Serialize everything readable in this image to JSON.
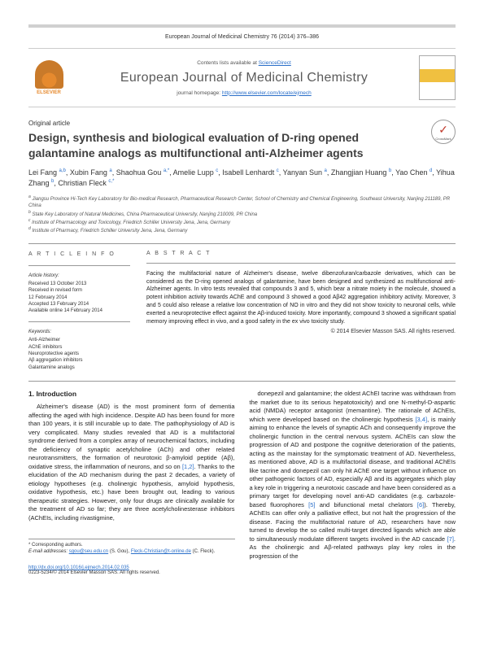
{
  "header": {
    "citation": "European Journal of Medicinal Chemistry 76 (2014) 376–386"
  },
  "masthead": {
    "publisher": "ELSEVIER",
    "contents": "Contents lists available at ",
    "contents_link": "ScienceDirect",
    "journal": "European Journal of Medicinal Chemistry",
    "homepage_label": "journal homepage: ",
    "homepage_url": "http://www.elsevier.com/locate/ejmech"
  },
  "article": {
    "type": "Original article",
    "title": "Design, synthesis and biological evaluation of D-ring opened galantamine analogs as multifunctional anti-Alzheimer agents",
    "crossmark": "CrossMark",
    "authors_html": "Lei Fang",
    "authors": [
      {
        "name": "Lei Fang",
        "aff": "a,b"
      },
      {
        "name": "Xubin Fang",
        "aff": "a"
      },
      {
        "name": "Shaohua Gou",
        "aff": "a,*"
      },
      {
        "name": "Amelie Lupp",
        "aff": "c"
      },
      {
        "name": "Isabell Lenhardt",
        "aff": "c"
      },
      {
        "name": "Yanyan Sun",
        "aff": "a"
      },
      {
        "name": "Zhangjian Huang",
        "aff": "b"
      },
      {
        "name": "Yao Chen",
        "aff": "d"
      },
      {
        "name": "Yihua Zhang",
        "aff": "b"
      },
      {
        "name": "Christian Fleck",
        "aff": "c,*"
      }
    ],
    "affiliations": [
      "Jiangsu Province Hi-Tech Key Laboratory for Bio-medical Research, Pharmaceutical Research Center, School of Chemistry and Chemical Engineering, Southeast University, Nanjing 211189, PR China",
      "State Key Laboratory of Natural Medicines, China Pharmaceutical University, Nanjing 210009, PR China",
      "Institute of Pharmacology and Toxicology, Friedrich Schiller University Jena, Jena, Germany",
      "Institute of Pharmacy, Friedrich Schiller University Jena, Jena, Germany"
    ]
  },
  "meta": {
    "info_head": "A R T I C L E   I N F O",
    "abs_head": "A B S T R A C T",
    "history_label": "Article history:",
    "history": [
      "Received 13 October 2013",
      "Received in revised form",
      "12 February 2014",
      "Accepted 13 February 2014",
      "Available online 14 February 2014"
    ],
    "kw_label": "Keywords:",
    "keywords": [
      "Anti-Alzheimer",
      "AChE inhibitors",
      "Neuroprotective agents",
      "Aβ aggregation inhibitors",
      "Galantamine analogs"
    ],
    "abstract": "Facing the multifactorial nature of Alzheimer's disease, twelve dibenzofuran/carbazole derivatives, which can be considered as the D-ring opened analogs of galantamine, have been designed and synthesized as multifunctional anti-Alzheimer agents. In vitro tests revealed that compounds 3 and 5, which bear a nitrate moiety in the molecule, showed a potent inhibition activity towards AChE and compound 3 showed a good Aβ42 aggregation inhibitory activity. Moreover, 3 and 5 could also release a relative low concentration of NO in vitro and they did not show toxicity to neuronal cells, while exerted a neuroprotective effect against the Aβ-induced toxicity. More importantly, compound 3 showed a significant spatial memory improving effect in vivo, and a good safety in the ex vivo toxicity study.",
    "copyright": "© 2014 Elsevier Masson SAS. All rights reserved."
  },
  "body": {
    "intro_head": "1.  Introduction",
    "col1": "Alzheimer's disease (AD) is the most prominent form of dementia affecting the aged with high incidence. Despite AD has been found for more than 100 years, it is still incurable up to date. The pathophysiology of AD is very complicated. Many studies revealed that AD is a multifactorial syndrome derived from a complex array of neurochemical factors, including the deficiency of synaptic acetylcholine (ACh) and other related neurotransmitters, the formation of neurotoxic β-amyloid peptide (Aβ), oxidative stress, the inflammation of neurons, and so on [1,2]. Thanks to the elucidation of the AD mechanism during the past 2 decades, a variety of etiology hypotheses (e.g. cholinergic hypothesis, amyloid hypothesis, oxidative hypothesis, etc.) have been brought out, leading to various therapeutic strategies. However, only four drugs are clinically available for the treatment of AD so far; they are three acetylcholinesterase inhibitors (AChEIs, including rivastigmine,",
    "col2": "donepezil and galantamine; the oldest AChEI tacrine was withdrawn from the market due to its serious hepatotoxicity) and one N-methyl-D-aspartic acid (NMDA) receptor antagonist (memantine). The rationale of AChEIs, which were developed based on the cholinergic hypothesis [3,4], is mainly aiming to enhance the levels of synaptic ACh and consequently improve the cholinergic function in the central nervous system. AChEIs can slow the progression of AD and postpone the cognitive deterioration of the patients, acting as the mainstay for the symptomatic treatment of AD. Nevertheless, as mentioned above, AD is a multifactorial disease, and traditional AChEIs like tacrine and donepezil can only hit AChE one target without influence on other pathogenic factors of AD, especially Aβ and its aggregates which play a key role in triggering a neurotoxic cascade and have been considered as a primary target for developing novel anti-AD candidates (e.g. carbazole-based fluorophores [5] and bifunctional metal chelators [6]). Thereby, AChEIs can offer only a palliative effect, but not halt the progression of the disease. Facing the multifactorial nature of AD, researchers have now turned to develop the so called multi-target directed ligands which are able to simultaneously modulate different targets involved in the AD cascade [7]. As the cholinergic and Aβ-related pathways play key roles in the progression of the"
  },
  "footer": {
    "corr_label": "* Corresponding authors.",
    "email_label": "E-mail addresses: ",
    "email1": "sgou@seu.edu.cn",
    "email1_who": "(S. Gou),",
    "email2": "Fleck-Christian@t-online.de",
    "email2_who": "(C. Fleck).",
    "doi": "http://dx.doi.org/10.1016/j.ejmech.2014.02.035",
    "issn": "0223-5234/© 2014 Elsevier Masson SAS. All rights reserved."
  }
}
